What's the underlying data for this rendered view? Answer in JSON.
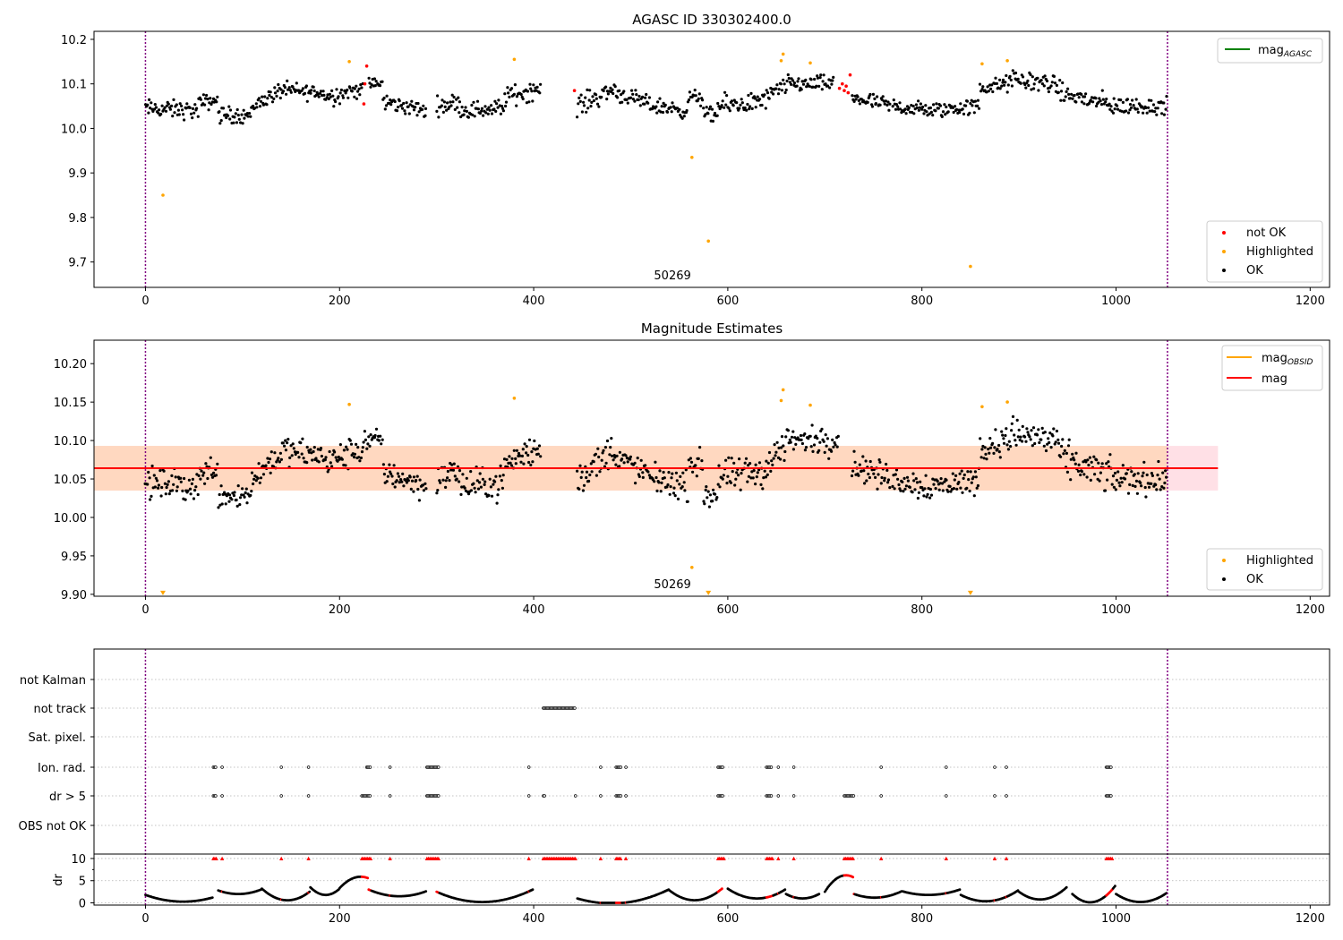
{
  "colors": {
    "ok": "#000000",
    "not_ok": "#ff0000",
    "highlighted": "#ffa500",
    "mag_agasc": "#008000",
    "mag_obsid": "#ffa500",
    "mag": "#ff0000",
    "band_outer": "#ffe0e6",
    "band_inner": "#ffd8c0",
    "obs_line": "#800080",
    "grid": "#b0b0b0"
  },
  "chart_data": [
    {
      "type": "scatter",
      "title": "AGASC ID 330302400.0",
      "annotation": "50269",
      "xlim": [
        -53,
        1220
      ],
      "ylim": [
        9.643,
        10.218
      ],
      "x_ticks": [
        "0",
        "200",
        "400",
        "600",
        "800",
        "1000",
        "1200"
      ],
      "y_ticks": [
        "9.7",
        "9.8",
        "9.9",
        "10.0",
        "10.1",
        "10.2"
      ],
      "vlines": [
        0,
        1053
      ],
      "legend_top": {
        "label": "mag",
        "sub": "AGASC"
      },
      "legend_bottom": [
        "not OK",
        "Highlighted",
        "OK"
      ],
      "series": [
        {
          "name": "Highlighted",
          "points": [
            [
              18,
              9.85
            ],
            [
              210,
              10.15
            ],
            [
              380,
              10.155
            ],
            [
              563,
              9.935
            ],
            [
              580,
              9.747
            ],
            [
              655,
              10.152
            ],
            [
              657,
              10.167
            ],
            [
              685,
              10.147
            ],
            [
              850,
              9.69
            ],
            [
              862,
              10.145
            ],
            [
              888,
              10.152
            ]
          ]
        },
        {
          "name": "not OK",
          "points": [
            [
              225,
              10.055
            ],
            [
              226,
              10.1
            ],
            [
              228,
              10.14
            ],
            [
              442,
              10.085
            ],
            [
              715,
              10.09
            ],
            [
              718,
              10.1
            ],
            [
              720,
              10.085
            ],
            [
              722,
              10.095
            ],
            [
              724,
              10.08
            ],
            [
              726,
              10.12
            ]
          ]
        },
        {
          "name": "OK",
          "segments": [
            [
              0,
              10.045,
              10.04,
              0.022,
              55
            ],
            [
              55,
              10.055,
              10.065,
              0.02,
              20
            ],
            [
              75,
              10.03,
              10.03,
              0.02,
              35
            ],
            [
              110,
              10.05,
              10.09,
              0.02,
              35
            ],
            [
              145,
              10.085,
              10.08,
              0.02,
              40
            ],
            [
              185,
              10.07,
              10.09,
              0.022,
              40
            ],
            [
              230,
              10.1,
              10.1,
              0.015,
              15
            ],
            [
              245,
              10.06,
              10.04,
              0.02,
              45
            ],
            [
              300,
              10.05,
              10.06,
              0.022,
              25
            ],
            [
              325,
              10.04,
              10.045,
              0.022,
              45
            ],
            [
              370,
              10.07,
              10.09,
              0.025,
              38
            ],
            [
              445,
              10.05,
              10.09,
              0.025,
              40
            ],
            [
              485,
              10.08,
              10.05,
              0.02,
              40
            ],
            [
              525,
              10.05,
              10.04,
              0.02,
              35
            ],
            [
              560,
              10.07,
              10.07,
              0.02,
              15
            ],
            [
              575,
              10.03,
              10.03,
              0.02,
              15
            ],
            [
              590,
              10.05,
              10.06,
              0.025,
              45
            ],
            [
              635,
              10.06,
              10.095,
              0.025,
              25
            ],
            [
              660,
              10.1,
              10.1,
              0.02,
              50
            ],
            [
              728,
              10.07,
              10.05,
              0.02,
              40
            ],
            [
              770,
              10.05,
              10.04,
              0.02,
              40
            ],
            [
              810,
              10.04,
              10.05,
              0.02,
              50
            ],
            [
              860,
              10.09,
              10.1,
              0.02,
              30
            ],
            [
              890,
              10.11,
              10.1,
              0.025,
              50
            ],
            [
              940,
              10.08,
              10.05,
              0.025,
              60
            ],
            [
              1000,
              10.05,
              10.05,
              0.022,
              53
            ]
          ]
        }
      ]
    },
    {
      "type": "scatter",
      "title": "Magnitude Estimates",
      "annotation": "50269",
      "xlim": [
        -53,
        1220
      ],
      "ylim": [
        9.8975,
        10.2305
      ],
      "x_ticks": [
        "0",
        "200",
        "400",
        "600",
        "800",
        "1000",
        "1200"
      ],
      "y_ticks": [
        "9.90",
        "9.95",
        "10.00",
        "10.05",
        "10.10",
        "10.15",
        "10.20"
      ],
      "vlines": [
        0,
        1053
      ],
      "mag": 10.064,
      "mag_band": [
        10.035,
        10.093
      ],
      "mag_band_x": [
        -53,
        1105
      ],
      "mag_obsid_band_x": [
        0,
        1053
      ],
      "legend_top": [
        {
          "label": "mag",
          "sub": "OBSID"
        },
        {
          "label": "mag",
          "sub": ""
        }
      ],
      "legend_bottom": [
        "Highlighted",
        "OK"
      ],
      "series": [
        {
          "name": "Highlighted",
          "points": [
            [
              210,
              10.147
            ],
            [
              380,
              10.155
            ],
            [
              563,
              9.935
            ],
            [
              655,
              10.152
            ],
            [
              657,
              10.166
            ],
            [
              685,
              10.146
            ],
            [
              862,
              10.144
            ],
            [
              888,
              10.15
            ]
          ]
        },
        {
          "name": "Highlighted (below range)",
          "points": [
            [
              18,
              9.9
            ],
            [
              580,
              9.9
            ],
            [
              850,
              9.9
            ]
          ]
        },
        {
          "name": "OK",
          "segments": [
            [
              0,
              10.045,
              10.04,
              0.022,
              55
            ],
            [
              55,
              10.055,
              10.065,
              0.02,
              20
            ],
            [
              75,
              10.03,
              10.03,
              0.02,
              35
            ],
            [
              110,
              10.05,
              10.09,
              0.02,
              35
            ],
            [
              145,
              10.085,
              10.08,
              0.02,
              40
            ],
            [
              185,
              10.07,
              10.09,
              0.022,
              40
            ],
            [
              225,
              10.1,
              10.1,
              0.015,
              20
            ],
            [
              245,
              10.06,
              10.04,
              0.02,
              45
            ],
            [
              300,
              10.05,
              10.06,
              0.022,
              25
            ],
            [
              325,
              10.04,
              10.045,
              0.022,
              45
            ],
            [
              370,
              10.07,
              10.09,
              0.025,
              38
            ],
            [
              445,
              10.05,
              10.09,
              0.025,
              40
            ],
            [
              485,
              10.08,
              10.05,
              0.02,
              40
            ],
            [
              525,
              10.05,
              10.04,
              0.02,
              35
            ],
            [
              560,
              10.07,
              10.07,
              0.02,
              15
            ],
            [
              575,
              10.03,
              10.03,
              0.02,
              15
            ],
            [
              590,
              10.05,
              10.06,
              0.025,
              45
            ],
            [
              635,
              10.06,
              10.095,
              0.025,
              25
            ],
            [
              660,
              10.1,
              10.1,
              0.02,
              55
            ],
            [
              728,
              10.07,
              10.05,
              0.02,
              40
            ],
            [
              770,
              10.05,
              10.04,
              0.02,
              40
            ],
            [
              810,
              10.04,
              10.05,
              0.02,
              50
            ],
            [
              860,
              10.09,
              10.1,
              0.02,
              30
            ],
            [
              890,
              10.11,
              10.1,
              0.025,
              50
            ],
            [
              940,
              10.08,
              10.05,
              0.025,
              60
            ],
            [
              1000,
              10.05,
              10.05,
              0.022,
              53
            ]
          ]
        }
      ]
    },
    {
      "type": "scatter",
      "title": "",
      "xlim": [
        -53,
        1220
      ],
      "x_ticks": [
        "0",
        "200",
        "400",
        "600",
        "800",
        "1000",
        "1200"
      ],
      "vlines": [
        0,
        1053
      ],
      "flag_labels": [
        "not Kalman",
        "not track",
        "Sat. pixel.",
        "Ion. rad.",
        "dr > 5",
        "OBS not OK"
      ],
      "flags": {
        "not track": [
          [
            410,
            443
          ]
        ],
        "Ion. rad.": [
          [
            70,
            73
          ],
          [
            79,
            79
          ],
          [
            140,
            140
          ],
          [
            168,
            168
          ],
          [
            228,
            232
          ],
          [
            252,
            252
          ],
          [
            290,
            302
          ],
          [
            395,
            395
          ],
          [
            469,
            469
          ],
          [
            485,
            490
          ],
          [
            495,
            495
          ],
          [
            590,
            596
          ],
          [
            640,
            646
          ],
          [
            652,
            652
          ],
          [
            668,
            668
          ],
          [
            758,
            758
          ],
          [
            825,
            825
          ],
          [
            875,
            875
          ],
          [
            887,
            887
          ],
          [
            990,
            996
          ]
        ],
        "dr > 5": [
          [
            70,
            73
          ],
          [
            79,
            79
          ],
          [
            140,
            140
          ],
          [
            168,
            168
          ],
          [
            223,
            232
          ],
          [
            252,
            252
          ],
          [
            290,
            302
          ],
          [
            395,
            395
          ],
          [
            410,
            412
          ],
          [
            443,
            443
          ],
          [
            469,
            469
          ],
          [
            485,
            490
          ],
          [
            495,
            495
          ],
          [
            590,
            596
          ],
          [
            640,
            646
          ],
          [
            652,
            652
          ],
          [
            668,
            668
          ],
          [
            720,
            730
          ],
          [
            758,
            758
          ],
          [
            825,
            825
          ],
          [
            875,
            875
          ],
          [
            887,
            887
          ],
          [
            990,
            996
          ]
        ]
      },
      "dr_ylabel": "dr",
      "dr_y_ticks": [
        "0",
        "5",
        "10"
      ],
      "dr_ylim": [
        -0.5,
        11
      ],
      "dr_flag_level": 10,
      "dr_red_ranges": [
        [
          70,
          73
        ],
        [
          79,
          79
        ],
        [
          140,
          140
        ],
        [
          168,
          168
        ],
        [
          223,
          232
        ],
        [
          252,
          252
        ],
        [
          290,
          302
        ],
        [
          395,
          395
        ],
        [
          410,
          443
        ],
        [
          469,
          469
        ],
        [
          485,
          490
        ],
        [
          495,
          495
        ],
        [
          590,
          596
        ],
        [
          640,
          646
        ],
        [
          652,
          652
        ],
        [
          668,
          668
        ],
        [
          720,
          730
        ],
        [
          758,
          758
        ],
        [
          825,
          825
        ],
        [
          875,
          875
        ],
        [
          887,
          887
        ],
        [
          990,
          996
        ]
      ],
      "dr_arcs": [
        [
          0,
          1.8,
          0.3,
          1.2,
          70
        ],
        [
          75,
          2.8,
          2.0,
          3.0,
          45
        ],
        [
          120,
          3.2,
          0.6,
          2.5,
          50
        ],
        [
          170,
          3.5,
          1.8,
          3.0,
          30
        ],
        [
          200,
          3.3,
          5.6,
          5.6,
          30
        ],
        [
          230,
          3.0,
          1.5,
          2.6,
          60
        ],
        [
          300,
          2.5,
          0.2,
          3.0,
          100
        ],
        [
          445,
          1.0,
          0.0,
          3.0,
          95
        ],
        [
          540,
          2.8,
          0.6,
          3.2,
          55
        ],
        [
          600,
          3.2,
          1.0,
          3.0,
          60
        ],
        [
          660,
          2.0,
          1.0,
          2.0,
          35
        ],
        [
          700,
          2.5,
          5.8,
          5.8,
          30
        ],
        [
          730,
          2.0,
          1.2,
          2.6,
          50
        ],
        [
          780,
          2.6,
          1.8,
          3.0,
          60
        ],
        [
          840,
          1.8,
          0.4,
          2.8,
          60
        ],
        [
          900,
          2.5,
          0.8,
          3.5,
          50
        ],
        [
          955,
          2.0,
          0.2,
          3.8,
          45
        ],
        [
          1000,
          2.0,
          0.2,
          2.2,
          53
        ]
      ]
    }
  ]
}
